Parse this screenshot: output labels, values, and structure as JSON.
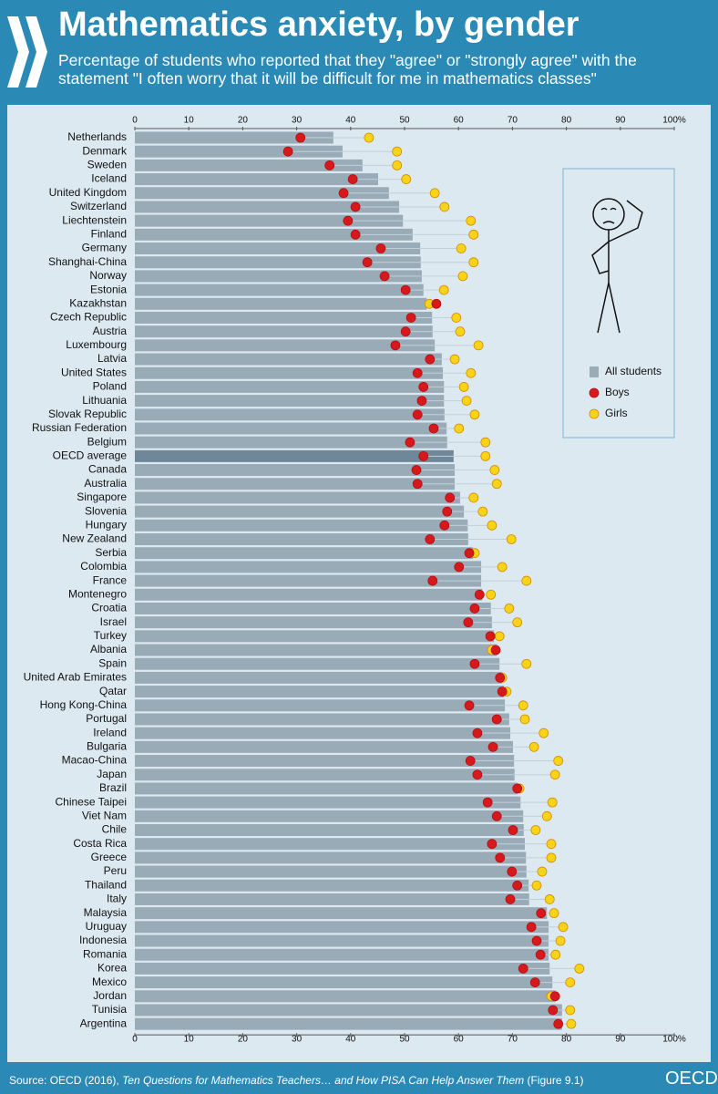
{
  "chart_data": {
    "type": "bar",
    "title": "Mathematics anxiety, by gender",
    "subtitle": "Percentage of students who reported that they \"agree\" or \"strongly agree\" with the statement \"I often worry that it will be difficult for me in mathematics classes\"",
    "categories": [
      "Netherlands",
      "Denmark",
      "Sweden",
      "Iceland",
      "United Kingdom",
      "Switzerland",
      "Liechtenstein",
      "Finland",
      "Germany",
      "Shanghai-China",
      "Norway",
      "Estonia",
      "Kazakhstan",
      "Czech Republic",
      "Austria",
      "Luxembourg",
      "Latvia",
      "United States",
      "Poland",
      "Lithuania",
      "Slovak Republic",
      "Russian Federation",
      "Belgium",
      "OECD average",
      "Canada",
      "Australia",
      "Singapore",
      "Slovenia",
      "Hungary",
      "New Zealand",
      "Serbia",
      "Colombia",
      "France",
      "Montenegro",
      "Croatia",
      "Israel",
      "Turkey",
      "Albania",
      "Spain",
      "United Arab Emirates",
      "Qatar",
      "Hong Kong-China",
      "Portugal",
      "Ireland",
      "Bulgaria",
      "Macao-China",
      "Japan",
      "Brazil",
      "Chinese Taipei",
      "Viet Nam",
      "Chile",
      "Costa Rica",
      "Greece",
      "Peru",
      "Thailand",
      "Italy",
      "Malaysia",
      "Uruguay",
      "Indonesia",
      "Romania",
      "Korea",
      "Mexico",
      "Jordan",
      "Tunisia",
      "Argentina"
    ],
    "series": [
      {
        "name": "All students",
        "type": "bar",
        "color": "#9aabb8",
        "highlight_color": "#6f8799",
        "values": [
          36.8,
          38.5,
          42.2,
          45.1,
          47.1,
          49.0,
          49.7,
          51.5,
          52.9,
          53.0,
          53.2,
          53.5,
          54.1,
          55.1,
          55.2,
          55.6,
          56.9,
          57.1,
          57.3,
          57.3,
          57.4,
          57.8,
          57.9,
          59.1,
          59.3,
          59.3,
          60.3,
          61.0,
          61.7,
          61.8,
          62.7,
          64.2,
          64.2,
          64.4,
          66.0,
          66.2,
          66.6,
          67.1,
          67.6,
          68.1,
          68.4,
          68.6,
          69.4,
          69.6,
          70.1,
          70.3,
          70.4,
          70.9,
          71.5,
          72.0,
          72.1,
          72.3,
          72.5,
          72.6,
          73.0,
          73.1,
          76.4,
          76.7,
          76.7,
          76.7,
          76.9,
          77.4,
          78.0,
          79.2,
          79.2
        ]
      },
      {
        "name": "Boys",
        "type": "dot",
        "color": "#d7191c",
        "values": [
          30.7,
          28.4,
          36.1,
          40.4,
          38.7,
          40.9,
          39.5,
          40.9,
          45.6,
          43.1,
          46.3,
          50.2,
          55.9,
          51.2,
          50.2,
          48.3,
          54.7,
          52.4,
          53.5,
          53.2,
          52.4,
          55.4,
          51.0,
          53.5,
          52.2,
          52.4,
          58.4,
          57.9,
          57.4,
          54.7,
          62.0,
          60.1,
          55.2,
          63.9,
          63.0,
          61.8,
          65.9,
          66.9,
          63.0,
          67.7,
          68.1,
          62.0,
          67.1,
          63.5,
          66.4,
          62.2,
          63.5,
          70.9,
          65.4,
          67.1,
          70.1,
          66.2,
          67.7,
          69.9,
          70.9,
          69.6,
          75.3,
          73.5,
          74.5,
          75.2,
          72.0,
          74.2,
          77.9,
          77.5,
          78.5
        ]
      },
      {
        "name": "Girls",
        "type": "dot",
        "color": "#f7d417",
        "values": [
          43.4,
          48.6,
          48.6,
          50.3,
          55.6,
          57.4,
          62.3,
          62.8,
          60.5,
          62.8,
          60.8,
          57.3,
          54.6,
          59.6,
          60.3,
          63.7,
          59.3,
          62.3,
          61.0,
          61.5,
          63.0,
          60.1,
          65.0,
          65.0,
          66.7,
          67.1,
          62.8,
          64.5,
          66.2,
          69.8,
          63.0,
          68.1,
          72.6,
          66.0,
          69.4,
          70.9,
          67.6,
          66.2,
          72.6,
          68.1,
          68.9,
          72.0,
          72.3,
          75.8,
          74.0,
          78.5,
          77.9,
          71.3,
          77.4,
          76.4,
          74.3,
          77.2,
          77.2,
          75.5,
          74.5,
          76.9,
          77.7,
          79.4,
          78.9,
          78.0,
          82.4,
          80.7,
          77.2,
          80.7,
          80.9
        ]
      }
    ],
    "highlight_category": "OECD average",
    "xlim": [
      0,
      100
    ],
    "xticks": [
      0,
      10,
      20,
      30,
      40,
      50,
      60,
      70,
      80,
      90,
      {
        "value": 100,
        "label": "100%"
      }
    ],
    "legend": "right",
    "source": {
      "prefix": "Source: OECD (2016), ",
      "work": "Ten Questions for Mathematics Teachers… and How PISA Can Help Answer Them",
      "suffix": " (Figure 9.1)"
    },
    "logo": "OECD"
  }
}
